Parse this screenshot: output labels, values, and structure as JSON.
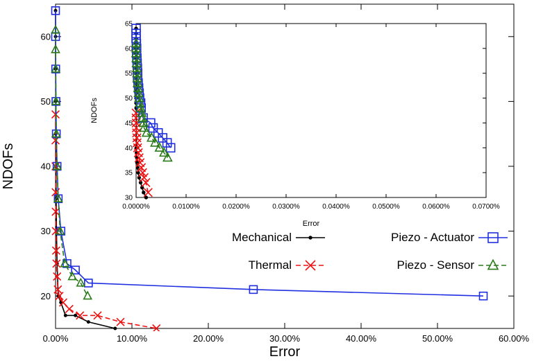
{
  "chart_data": [
    {
      "type": "line",
      "xlabel": "Error",
      "ylabel": "NDOFs",
      "xlim": [
        0,
        60
      ],
      "ylim": [
        15,
        65
      ],
      "x_unit": "%",
      "xticks": [
        "0.00%",
        "10.00%",
        "20.00%",
        "30.00%",
        "40.00%",
        "50.00%",
        "60.00%"
      ],
      "yticks": [
        "20",
        "30",
        "40",
        "50",
        "60"
      ],
      "grid": false,
      "legend_position": "bottom-right",
      "series": [
        {
          "name": "Mechanical",
          "color": "#000000",
          "line": "solid",
          "marker": "dot",
          "x": [
            0.0,
            0.0,
            0.01,
            0.02,
            0.03,
            0.05,
            0.08,
            0.12,
            0.2,
            0.35,
            0.7,
            1.3,
            2.6,
            4.3,
            7.8
          ],
          "y": [
            64,
            60,
            55,
            50,
            45,
            40,
            35,
            30,
            25,
            20,
            19,
            17,
            17,
            16,
            15
          ]
        },
        {
          "name": "Thermal",
          "color": "#ee1111",
          "line": "dashed",
          "marker": "x",
          "x": [
            0.0,
            0.0,
            0.01,
            0.02,
            0.03,
            0.05,
            0.08,
            0.12,
            0.2,
            0.3,
            0.5,
            1.0,
            1.8,
            3.2,
            5.5,
            8.5,
            13.2
          ],
          "y": [
            48,
            44,
            40,
            36,
            33,
            30,
            27,
            25,
            23,
            21,
            20,
            19,
            18,
            17,
            17,
            16,
            15
          ]
        },
        {
          "name": "Piezo - Actuator",
          "color": "#1f2fe0",
          "line": "solid",
          "marker": "square",
          "x": [
            0.0,
            0.0,
            0.02,
            0.05,
            0.1,
            0.2,
            0.35,
            0.7,
            1.5,
            2.6,
            4.3,
            25.9,
            56.0
          ],
          "y": [
            64,
            60,
            55,
            50,
            45,
            40,
            35,
            30,
            25,
            24,
            22,
            21,
            20
          ]
        },
        {
          "name": "Piezo - Sensor",
          "color": "#2a7a1a",
          "line": "dashed",
          "marker": "triangle",
          "x": [
            0.0,
            0.0,
            0.02,
            0.05,
            0.1,
            0.2,
            0.35,
            0.6,
            1.2,
            2.2,
            3.3,
            4.2
          ],
          "y": [
            61,
            58,
            55,
            50,
            45,
            40,
            35,
            30,
            25,
            23,
            22,
            20
          ]
        }
      ]
    },
    {
      "type": "line",
      "xlabel": "Error",
      "ylabel": "NDOFs",
      "xlim": [
        0,
        0.07
      ],
      "ylim": [
        30,
        65
      ],
      "x_unit": "%",
      "xticks": [
        "0.0000%",
        "0.0100%",
        "0.0200%",
        "0.0300%",
        "0.0400%",
        "0.0500%",
        "0.0600%",
        "0.0700%"
      ],
      "yticks": [
        "30",
        "35",
        "40",
        "45",
        "50",
        "55",
        "60",
        "65"
      ],
      "grid": false,
      "position": "inset",
      "series": [
        {
          "name": "Mechanical",
          "color": "#000000",
          "line": "solid",
          "marker": "dot",
          "x": [
            0.0,
            0.0,
            0.0,
            0.0,
            0.0,
            0.0,
            0.0,
            0.0,
            0.0,
            0.0,
            0.0,
            0.0,
            0.0,
            0.0,
            0.0,
            0.0,
            2e-05,
            5e-05,
            0.0001,
            0.00015,
            0.0002,
            0.0003,
            0.0004,
            0.0006,
            0.0009,
            0.0012,
            0.0015,
            0.002
          ],
          "y": [
            64,
            63,
            62,
            61,
            60,
            59,
            58,
            57,
            56,
            55,
            54,
            53,
            52,
            51,
            50,
            49,
            48,
            40,
            39,
            38,
            37,
            36,
            35,
            34,
            33,
            32,
            31,
            30
          ]
        },
        {
          "name": "Thermal",
          "color": "#ee1111",
          "line": "dashed",
          "marker": "x",
          "x": [
            0.0,
            0.0,
            2e-05,
            5e-05,
            0.0001,
            0.00015,
            0.0002,
            0.0003,
            0.00045,
            0.0006,
            0.0008,
            0.00105,
            0.0013,
            0.0016,
            0.00195,
            0.0024
          ],
          "y": [
            47,
            46,
            45,
            44,
            43,
            42,
            41,
            40,
            39,
            38,
            37,
            36,
            35,
            34,
            33,
            31
          ]
        },
        {
          "name": "Piezo - Actuator",
          "color": "#1f2fe0",
          "line": "solid",
          "marker": "square",
          "x": [
            0.0,
            0.0,
            0.0,
            5e-05,
            0.0001,
            0.0001,
            0.00015,
            0.0002,
            0.00025,
            0.0003,
            0.0003,
            0.0004,
            0.0005,
            0.0006,
            0.0007,
            0.0009,
            0.001,
            0.0014,
            0.0029,
            0.0034,
            0.0044,
            0.0053,
            0.0062,
            0.0069
          ],
          "y": [
            64,
            63,
            62,
            61,
            60,
            59,
            58,
            57,
            56,
            55,
            54,
            53,
            52,
            51,
            50,
            49,
            48,
            46,
            45,
            44,
            43,
            42,
            41,
            40
          ]
        },
        {
          "name": "Piezo - Sensor",
          "color": "#2a7a1a",
          "line": "dashed",
          "marker": "triangle",
          "x": [
            0.0,
            0.0,
            0.0,
            5e-05,
            0.0001,
            0.00015,
            0.0002,
            0.00025,
            0.0003,
            0.0004,
            0.0005,
            0.0006,
            0.0007,
            0.0009,
            0.0011,
            0.0013,
            0.0015,
            0.0016,
            0.0021,
            0.0031,
            0.0038,
            0.0047,
            0.0056,
            0.0063
          ],
          "y": [
            61,
            60,
            59,
            58,
            57,
            56,
            55,
            54,
            53,
            52,
            51,
            50,
            49,
            48,
            47,
            46,
            45,
            44,
            43,
            42,
            41,
            40,
            39,
            38
          ]
        }
      ]
    }
  ],
  "legend": {
    "mechanical": "Mechanical",
    "thermal": "Thermal",
    "actuator": "Piezo - Actuator",
    "sensor": "Piezo - Sensor"
  }
}
